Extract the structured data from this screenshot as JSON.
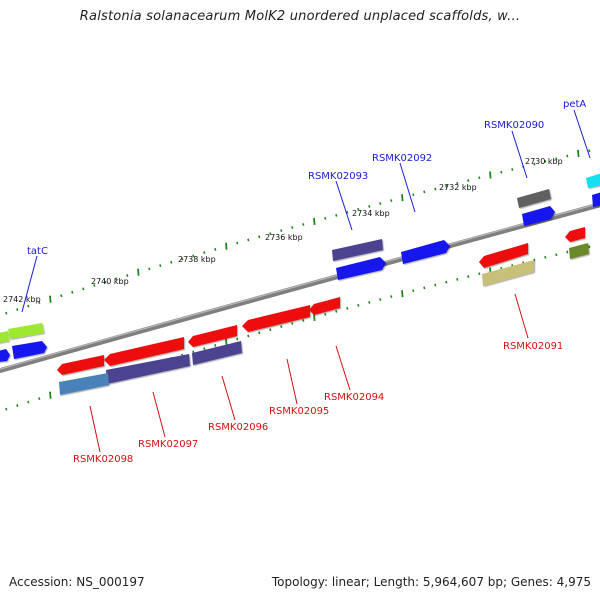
{
  "title": "Ralstonia solanacearum MolK2 unordered unplaced scaffolds, w...",
  "footer": {
    "accession": "Accession: NS_000197",
    "topology": "Topology: linear; Length: 5,964,607 bp; Genes: 4,975"
  },
  "colors": {
    "backbone": "#7f7f7f",
    "tick": "#1a8a1a",
    "label_forward": "#1a1ad8",
    "label_reverse": "#d41010",
    "red": "#ee1111",
    "blue": "#1414ee",
    "navy": "#4b4290",
    "gray": "#606060",
    "cyan": "#18e0f0",
    "lime": "#9ee833",
    "olive": "#c8c079",
    "darkgreen": "#6a8a2a",
    "steel": "#4a82b8"
  },
  "scale": {
    "ticks": [
      {
        "label": "2742 kbp"
      },
      {
        "label": "2740 kbp"
      },
      {
        "label": "2738 kbp"
      },
      {
        "label": "2736 kbp"
      },
      {
        "label": "2734 kbp"
      },
      {
        "label": "2732 kbp"
      },
      {
        "label": "2730 kbp"
      }
    ]
  },
  "labels": {
    "tatC": "tatC",
    "petA": "petA",
    "RSMK02090": "RSMK02090",
    "RSMK02092": "RSMK02092",
    "RSMK02093": "RSMK02093",
    "RSMK02091": "RSMK02091",
    "RSMK02094": "RSMK02094",
    "RSMK02095": "RSMK02095",
    "RSMK02096": "RSMK02096",
    "RSMK02097": "RSMK02097",
    "RSMK02098": "RSMK02098"
  }
}
